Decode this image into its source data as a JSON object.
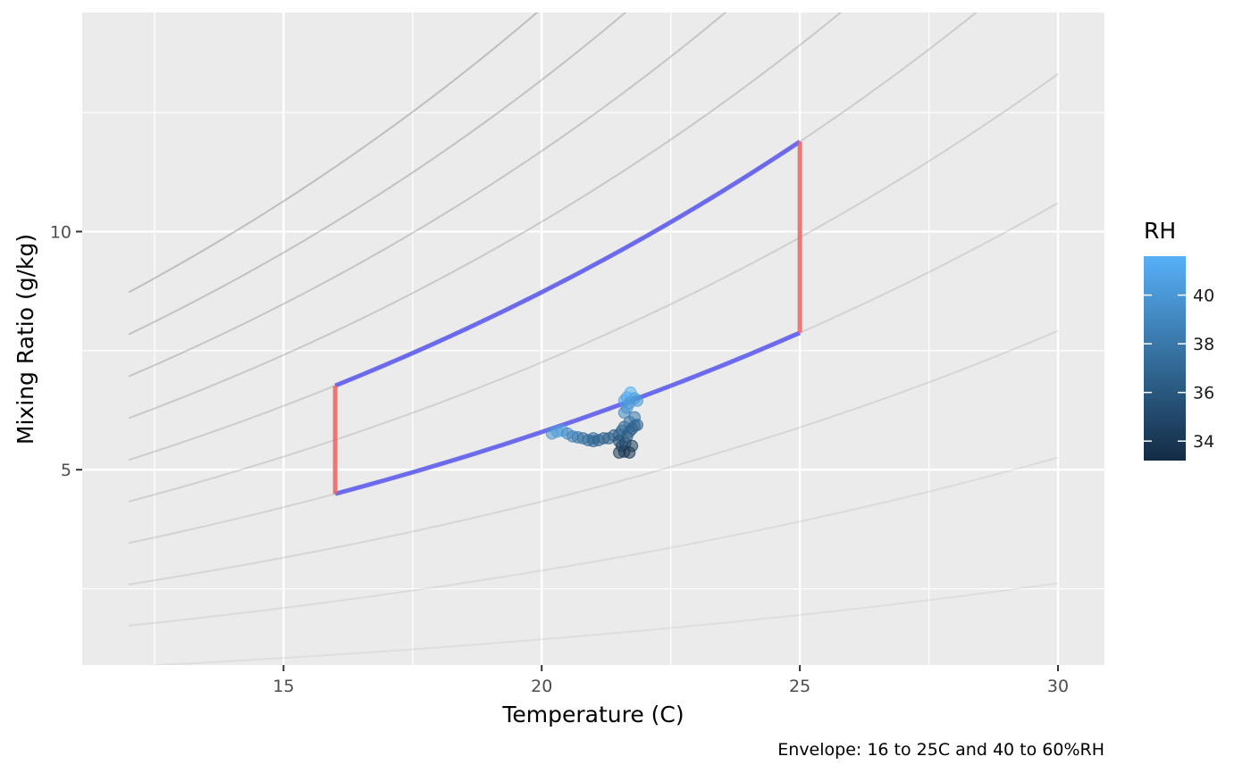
{
  "chart_data": {
    "type": "scatter",
    "xlabel": "Temperature (C)",
    "ylabel": "Mixing Ratio (g/kg)",
    "caption": "Envelope: 16 to 25C and 40 to 60%RH",
    "xlim": [
      11.1,
      30.9
    ],
    "ylim": [
      0.9,
      14.6
    ],
    "x_ticks": [
      15,
      20,
      25,
      30
    ],
    "y_ticks": [
      5,
      10
    ],
    "x_tick_labels": [
      "15",
      "20",
      "25",
      "30"
    ],
    "y_tick_labels": [
      "5",
      "10"
    ],
    "grid": true,
    "legend": {
      "title": "RH",
      "placement": "right",
      "range": [
        33.2,
        41.6
      ],
      "ticks": [
        34,
        36,
        38,
        40
      ],
      "tick_labels": [
        "34",
        "36",
        "38",
        "40"
      ],
      "low_color": "#132b43",
      "high_color": "#56b1f7"
    },
    "rh_curves": {
      "rh_values": [
        10,
        20,
        30,
        40,
        50,
        60,
        70,
        80,
        90,
        100
      ],
      "t_range": [
        12,
        30
      ],
      "color": "#808080"
    },
    "envelope": {
      "t_min": 16,
      "t_max": 25,
      "rh_min": 40,
      "rh_max": 60,
      "rh_line_color": "#4f4ff0",
      "temp_line_color": "#f06060"
    },
    "points": [
      {
        "t": 20.2,
        "w": 5.76,
        "rh": 39.6
      },
      {
        "t": 20.3,
        "w": 5.8,
        "rh": 40.2
      },
      {
        "t": 20.4,
        "w": 5.82,
        "rh": 40.5
      },
      {
        "t": 20.5,
        "w": 5.76,
        "rh": 39.3
      },
      {
        "t": 20.6,
        "w": 5.7,
        "rh": 38.6
      },
      {
        "t": 20.7,
        "w": 5.68,
        "rh": 38.0
      },
      {
        "t": 20.8,
        "w": 5.66,
        "rh": 37.6
      },
      {
        "t": 20.9,
        "w": 5.62,
        "rh": 37.1
      },
      {
        "t": 21.0,
        "w": 5.6,
        "rh": 36.8
      },
      {
        "t": 21.0,
        "w": 5.66,
        "rh": 37.2
      },
      {
        "t": 21.1,
        "w": 5.62,
        "rh": 36.7
      },
      {
        "t": 21.2,
        "w": 5.66,
        "rh": 36.6
      },
      {
        "t": 21.3,
        "w": 5.66,
        "rh": 36.4
      },
      {
        "t": 21.4,
        "w": 5.72,
        "rh": 36.5
      },
      {
        "t": 21.5,
        "w": 5.74,
        "rh": 36.4
      },
      {
        "t": 21.5,
        "w": 5.6,
        "rh": 35.5
      },
      {
        "t": 21.5,
        "w": 5.36,
        "rh": 34.0
      },
      {
        "t": 21.55,
        "w": 5.82,
        "rh": 36.9
      },
      {
        "t": 21.55,
        "w": 5.5,
        "rh": 34.9
      },
      {
        "t": 21.6,
        "w": 5.38,
        "rh": 34.0
      },
      {
        "t": 21.6,
        "w": 5.9,
        "rh": 37.2
      },
      {
        "t": 21.6,
        "w": 6.2,
        "rh": 39.0
      },
      {
        "t": 21.6,
        "w": 6.45,
        "rh": 40.6
      },
      {
        "t": 21.62,
        "w": 5.56,
        "rh": 35.1
      },
      {
        "t": 21.65,
        "w": 5.7,
        "rh": 35.9
      },
      {
        "t": 21.65,
        "w": 6.3,
        "rh": 39.6
      },
      {
        "t": 21.65,
        "w": 6.52,
        "rh": 41.0
      },
      {
        "t": 21.7,
        "w": 5.36,
        "rh": 33.6
      },
      {
        "t": 21.7,
        "w": 5.8,
        "rh": 36.4
      },
      {
        "t": 21.7,
        "w": 6.0,
        "rh": 37.6
      },
      {
        "t": 21.7,
        "w": 6.4,
        "rh": 40.1
      },
      {
        "t": 21.72,
        "w": 6.62,
        "rh": 41.4
      },
      {
        "t": 21.75,
        "w": 5.5,
        "rh": 34.3
      },
      {
        "t": 21.75,
        "w": 5.86,
        "rh": 36.6
      },
      {
        "t": 21.8,
        "w": 5.92,
        "rh": 36.8
      },
      {
        "t": 21.8,
        "w": 6.1,
        "rh": 38.0
      },
      {
        "t": 21.8,
        "w": 6.5,
        "rh": 40.4
      },
      {
        "t": 21.85,
        "w": 5.94,
        "rh": 36.8
      },
      {
        "t": 21.85,
        "w": 6.45,
        "rh": 40.0
      }
    ]
  }
}
